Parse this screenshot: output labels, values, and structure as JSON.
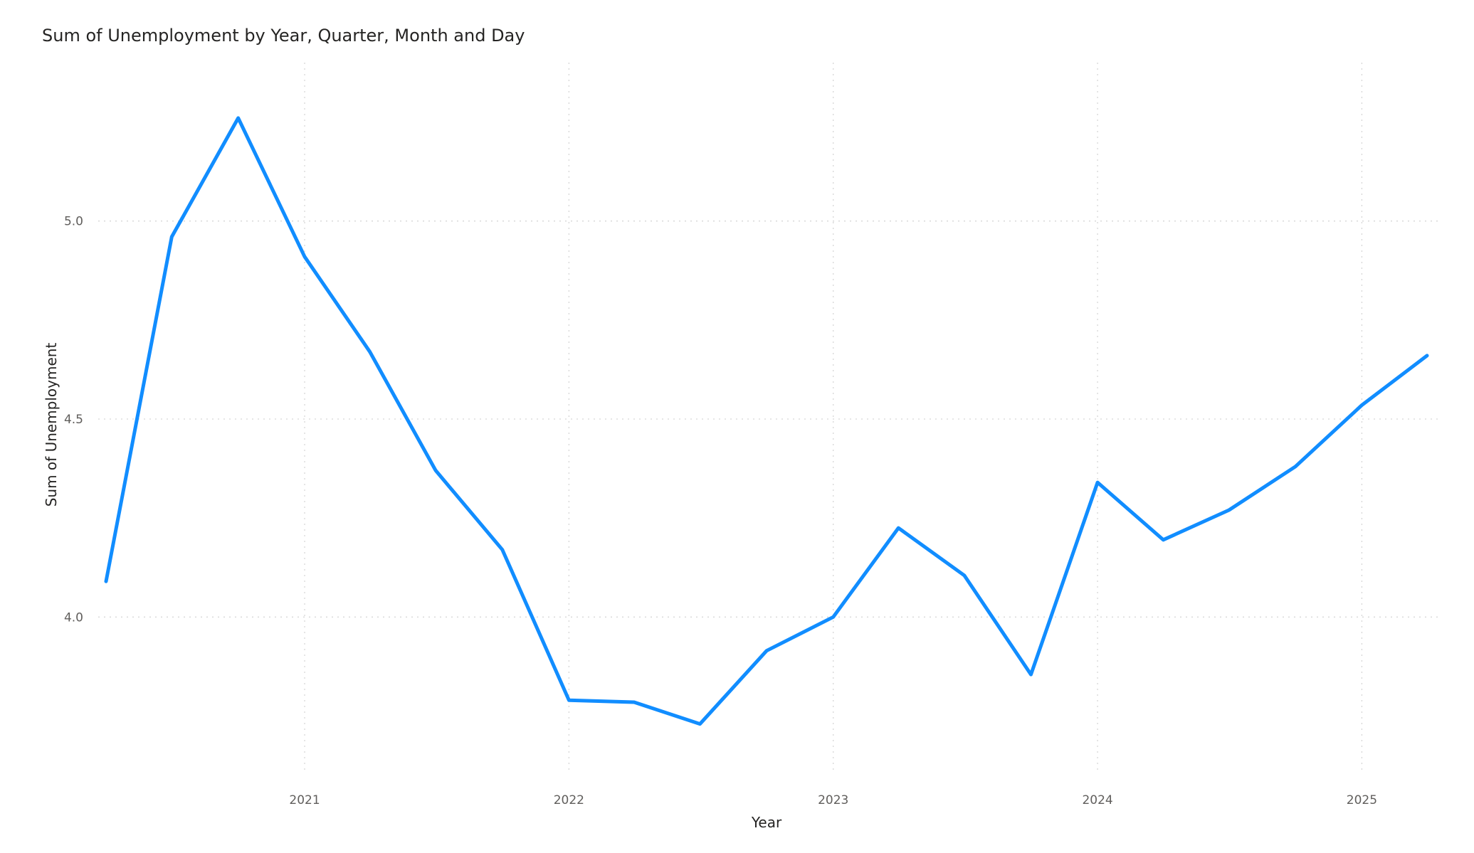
{
  "chart_data": {
    "type": "line",
    "title": "Sum of Unemployment by Year, Quarter, Month and Day",
    "xlabel": "Year",
    "ylabel": "Sum of Unemployment",
    "x_ticks": [
      "2021",
      "2022",
      "2023",
      "2024",
      "2025"
    ],
    "y_ticks": [
      "4.0",
      "4.5",
      "5.0"
    ],
    "x_range": [
      "2020-04-01",
      "2025-04-01"
    ],
    "ylim": [
      3.6,
      5.4
    ],
    "grid": true,
    "legend": "none",
    "line_color": "#118DFF",
    "series": [
      {
        "points": [
          {
            "x": "2020-04-01",
            "y": 4.09
          },
          {
            "x": "2020-07-01",
            "y": 4.96
          },
          {
            "x": "2020-10-01",
            "y": 5.26
          },
          {
            "x": "2021-01-01",
            "y": 4.91
          },
          {
            "x": "2021-04-01",
            "y": 4.67
          },
          {
            "x": "2021-07-01",
            "y": 4.37
          },
          {
            "x": "2021-10-01",
            "y": 4.17
          },
          {
            "x": "2022-01-01",
            "y": 3.79
          },
          {
            "x": "2022-04-01",
            "y": 3.785
          },
          {
            "x": "2022-07-01",
            "y": 3.73
          },
          {
            "x": "2022-10-01",
            "y": 3.915
          },
          {
            "x": "2023-01-01",
            "y": 4.0
          },
          {
            "x": "2023-04-01",
            "y": 4.225
          },
          {
            "x": "2023-07-01",
            "y": 4.105
          },
          {
            "x": "2023-10-01",
            "y": 3.855
          },
          {
            "x": "2024-01-01",
            "y": 4.34
          },
          {
            "x": "2024-04-01",
            "y": 4.195
          },
          {
            "x": "2024-07-01",
            "y": 4.27
          },
          {
            "x": "2024-10-01",
            "y": 4.38
          },
          {
            "x": "2025-01-01",
            "y": 4.535
          },
          {
            "x": "2025-04-01",
            "y": 4.66
          }
        ]
      }
    ]
  }
}
